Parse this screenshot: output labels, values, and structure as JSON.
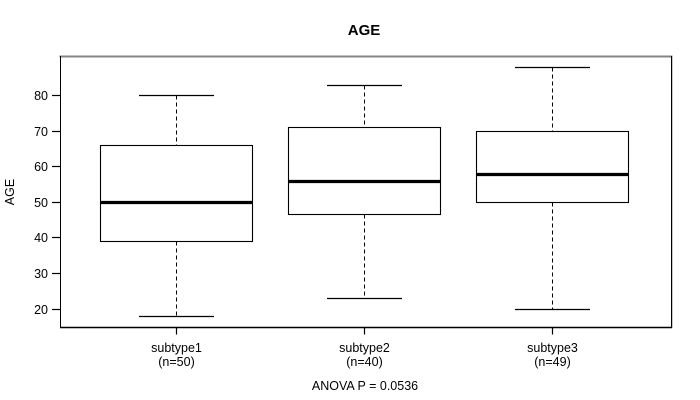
{
  "chart_data": {
    "type": "box",
    "title": "AGE",
    "xlabel": "",
    "ylabel": "AGE",
    "annotation": "ANOVA P = 0.0536",
    "grid": false,
    "legend": "none",
    "y_ticks": [
      20,
      30,
      40,
      50,
      60,
      70,
      80
    ],
    "ylim": [
      14.8,
      90.8
    ],
    "categories": [
      "subtype1",
      "subtype2",
      "subtype3"
    ],
    "boxes": [
      {
        "category": "subtype1",
        "count_label": "(n=50)",
        "lower_whisker": 18,
        "q1": 39,
        "median": 50,
        "q3": 66,
        "upper_whisker": 80
      },
      {
        "category": "subtype2",
        "count_label": "(n=40)",
        "lower_whisker": 23,
        "q1": 46.5,
        "median": 56,
        "q3": 71,
        "upper_whisker": 83
      },
      {
        "category": "subtype3",
        "count_label": "(n=49)",
        "lower_whisker": 20,
        "q1": 50,
        "median": 58,
        "q3": 70,
        "upper_whisker": 88
      }
    ],
    "colors": {
      "line": "#000000",
      "box_fill": "#ffffff",
      "background": "#ffffff",
      "frame_top": "#848484",
      "frame_shadow": "#c8c8c8"
    }
  }
}
